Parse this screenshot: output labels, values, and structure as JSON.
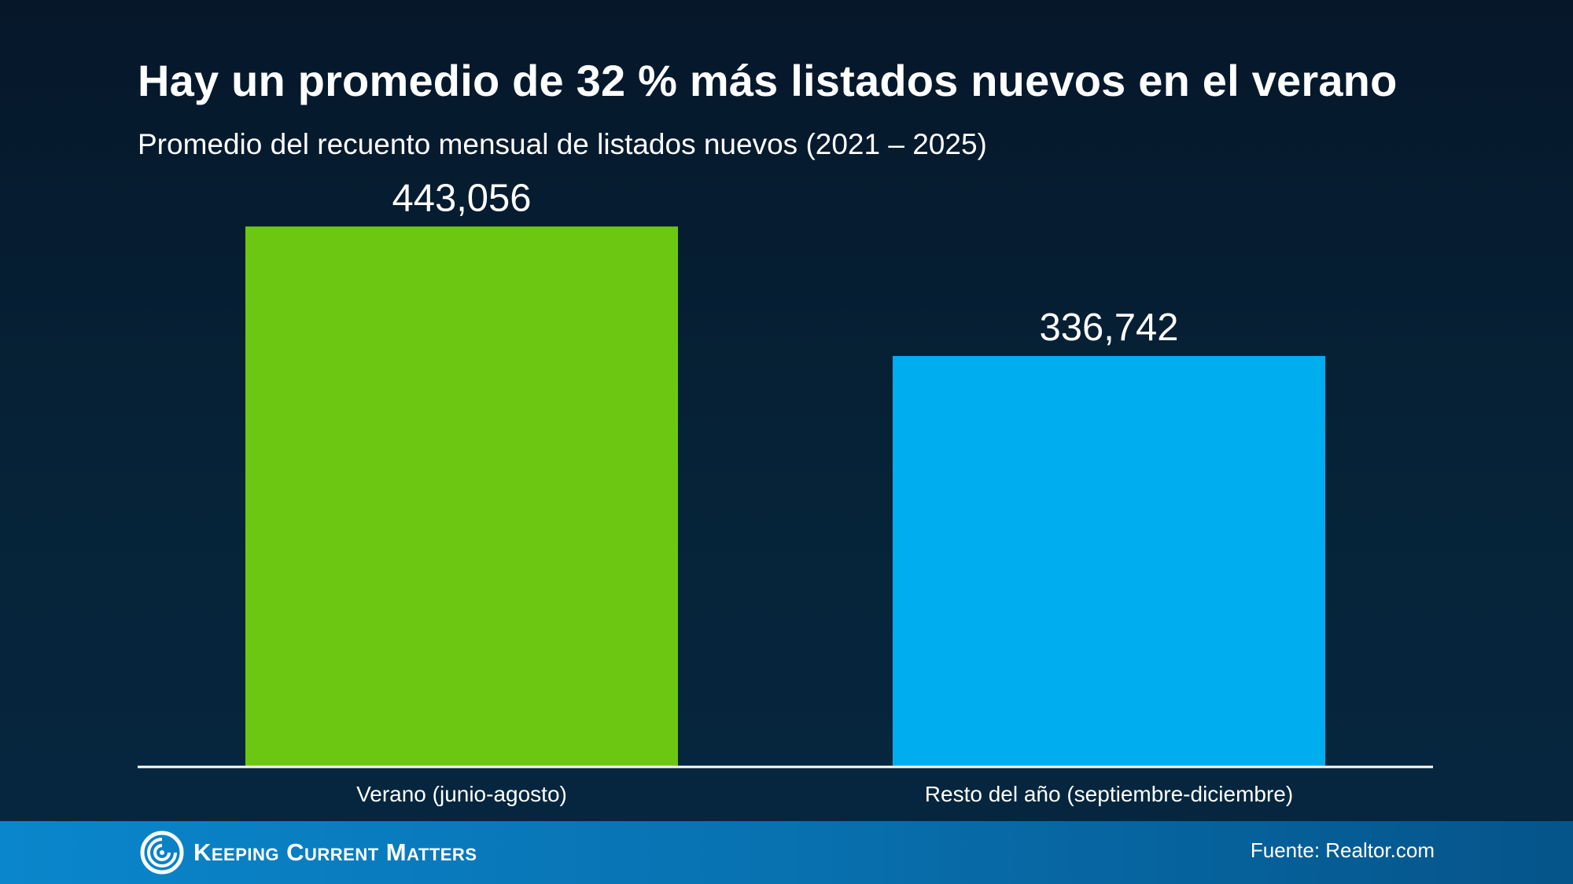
{
  "header": {
    "title": "Hay un promedio de 32 % más listados nuevos en el verano",
    "subtitle": "Promedio del recuento mensual de listados nuevos (2021 – 2025)"
  },
  "chart_data": {
    "type": "bar",
    "title": "Hay un promedio de 32 % más listados nuevos en el verano",
    "subtitle": "Promedio del recuento mensual de listados nuevos (2021 – 2025)",
    "categories": [
      "Verano (junio-agosto)",
      "Resto del año (septiembre-diciembre)"
    ],
    "values": [
      443056,
      336742
    ],
    "value_labels": [
      "443,056",
      "336,742"
    ],
    "colors": [
      "#6cc712",
      "#00adee"
    ],
    "xlabel": "",
    "ylabel": "",
    "ylim": [
      0,
      500000
    ],
    "grid": false,
    "legend": "none"
  },
  "footer": {
    "brand": "Keeping Current Matters",
    "logo_icon": "spiral-logo-icon",
    "source": "Fuente: Realtor.com"
  }
}
